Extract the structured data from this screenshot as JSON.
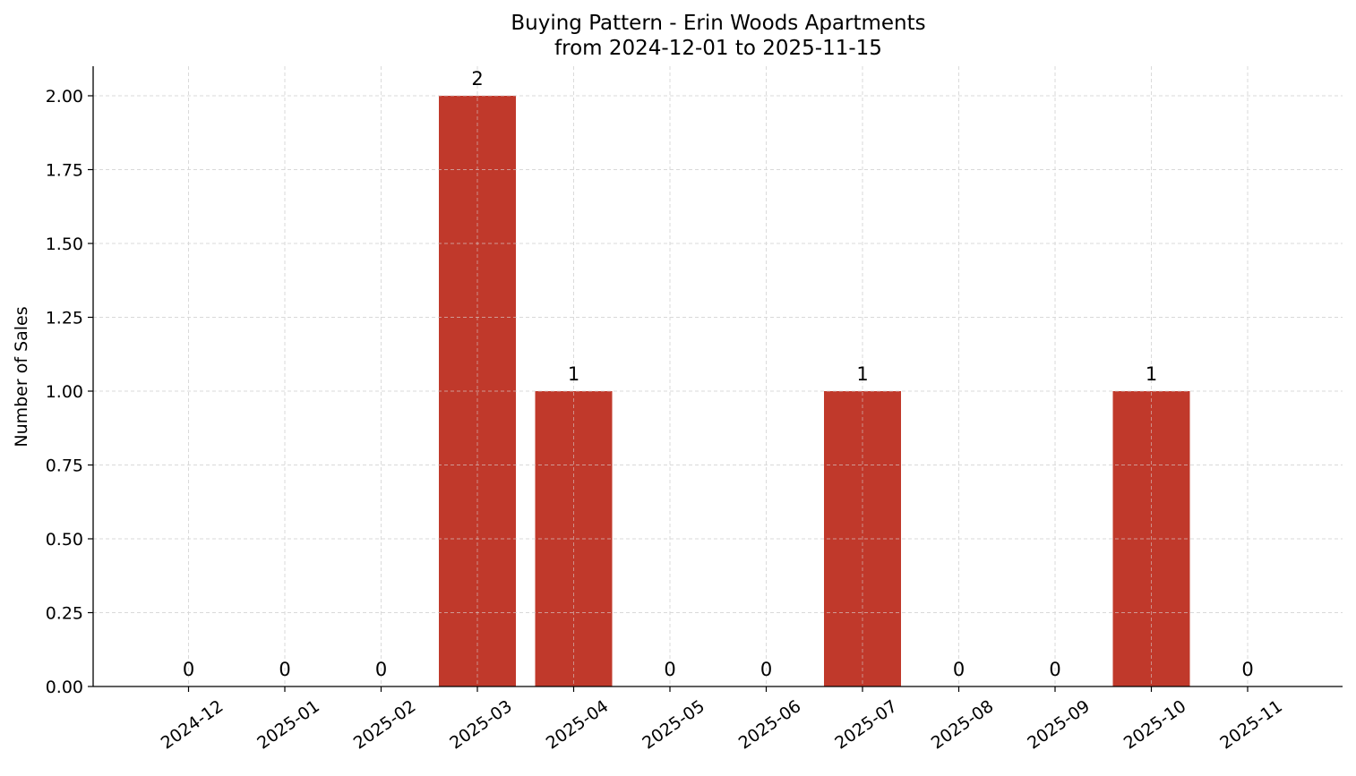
{
  "chart_data": {
    "type": "bar",
    "title_line1": "Buying Pattern - Erin Woods Apartments",
    "title_line2": "from 2024-12-01 to 2025-11-15",
    "xlabel": "",
    "ylabel": "Number of Sales",
    "categories": [
      "2024-12",
      "2025-01",
      "2025-02",
      "2025-03",
      "2025-04",
      "2025-05",
      "2025-06",
      "2025-07",
      "2025-08",
      "2025-09",
      "2025-10",
      "2025-11"
    ],
    "values": [
      0,
      0,
      0,
      2,
      1,
      0,
      0,
      1,
      0,
      0,
      1,
      0
    ],
    "data_labels": [
      "0",
      "0",
      "0",
      "2",
      "1",
      "0",
      "0",
      "1",
      "0",
      "0",
      "1",
      "0"
    ],
    "ylim": [
      0,
      2.1
    ],
    "yticks": [
      0,
      0.25,
      0.5,
      0.75,
      1.0,
      1.25,
      1.5,
      1.75,
      2.0
    ],
    "ytick_labels": [
      "0.00",
      "0.25",
      "0.50",
      "0.75",
      "1.00",
      "1.25",
      "1.50",
      "1.75",
      "2.00"
    ],
    "grid": true,
    "bar_color": "#c0392b",
    "grid_color": "#d9d9d9"
  }
}
